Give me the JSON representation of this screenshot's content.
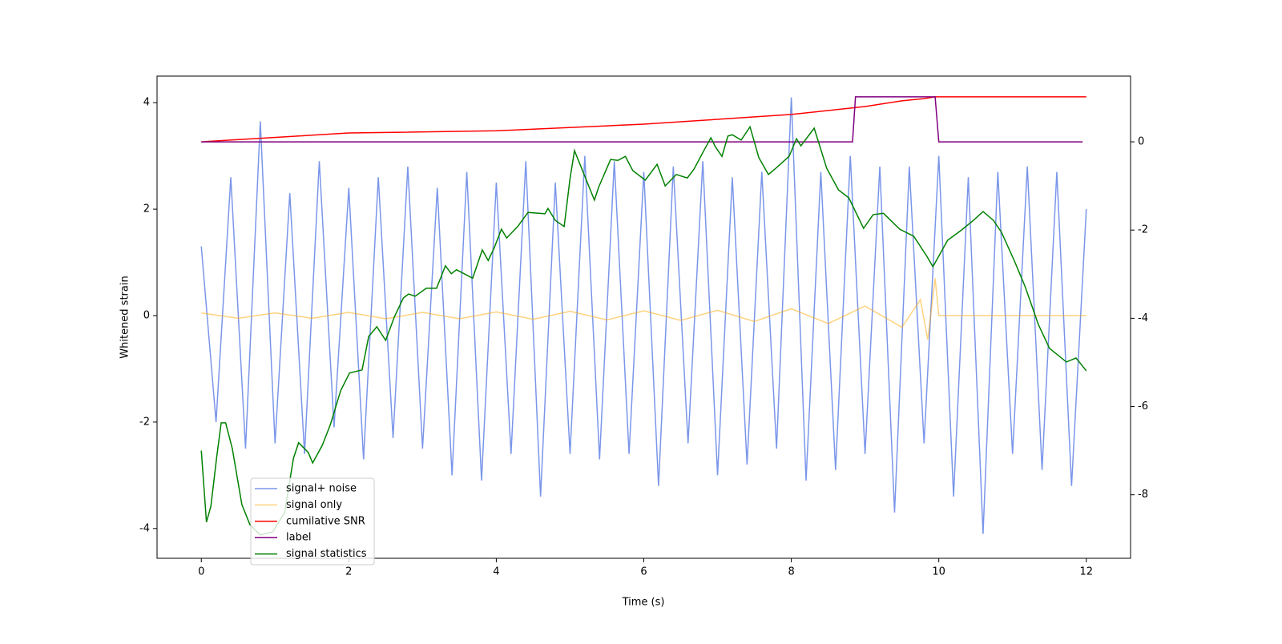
{
  "chart_data": {
    "type": "line",
    "xlabel": "Time (s)",
    "ylabel": "Whitened strain",
    "xlim": [
      -0.6,
      12.6
    ],
    "xticks": [
      0,
      2,
      4,
      6,
      8,
      10,
      12
    ],
    "ylim": [
      -4.56,
      4.5
    ],
    "yticks": [
      -4,
      -2,
      0,
      2,
      4
    ],
    "y2lim": [
      -9.44,
      1.49
    ],
    "y2ticks": [
      -8,
      -6,
      -4,
      -2,
      0
    ],
    "legend": "lower left",
    "series": [
      {
        "name": "signal+ noise",
        "color": "#4169e1",
        "opacity": 0.7,
        "x": [
          0,
          0.2,
          0.4,
          0.6,
          0.8,
          1,
          1.2,
          1.4,
          1.6,
          1.8,
          2,
          2.2,
          2.4,
          2.6,
          2.8,
          3,
          3.2,
          3.4,
          3.6,
          3.8,
          4,
          4.2,
          4.4,
          4.6,
          4.8,
          5,
          5.2,
          5.4,
          5.6,
          5.8,
          6,
          6.2,
          6.4,
          6.6,
          6.8,
          7,
          7.2,
          7.4,
          7.6,
          7.8,
          8,
          8.2,
          8.4,
          8.6,
          8.8,
          9,
          9.2,
          9.4,
          9.6,
          9.8,
          10,
          10.2,
          10.4,
          10.6,
          10.8,
          11,
          11.2,
          11.4,
          11.6,
          11.8,
          12
        ],
        "values": [
          1.3,
          -2.0,
          2.6,
          -2.5,
          3.65,
          -2.4,
          2.3,
          -2.6,
          2.9,
          -2.1,
          2.4,
          -2.7,
          2.6,
          -2.3,
          2.8,
          -2.5,
          2.4,
          -3.0,
          2.7,
          -3.1,
          2.5,
          -2.6,
          2.9,
          -3.4,
          2.5,
          -2.6,
          3.0,
          -2.7,
          2.9,
          -2.6,
          2.7,
          -3.2,
          2.8,
          -2.4,
          2.9,
          -3.0,
          2.6,
          -2.8,
          2.7,
          -2.5,
          4.1,
          -3.1,
          2.7,
          -2.9,
          3.0,
          -2.6,
          2.8,
          -3.7,
          2.8,
          -2.4,
          3.0,
          -3.4,
          2.6,
          -4.1,
          2.7,
          -2.6,
          2.8,
          -2.9,
          2.7,
          -3.2,
          2.0
        ]
      },
      {
        "name": "signal only",
        "color": "#ffa500",
        "opacity": 0.5,
        "x": [
          0,
          0.5,
          1,
          1.5,
          2,
          2.5,
          3,
          3.5,
          4,
          4.5,
          5,
          5.5,
          6,
          6.5,
          7,
          7.5,
          8,
          8.5,
          9,
          9.5,
          9.75,
          9.85,
          9.95,
          10,
          12
        ],
        "values": [
          0.05,
          -0.05,
          0.05,
          -0.05,
          0.06,
          -0.06,
          0.06,
          -0.06,
          0.07,
          -0.07,
          0.08,
          -0.08,
          0.09,
          -0.09,
          0.1,
          -0.11,
          0.13,
          -0.15,
          0.18,
          -0.22,
          0.3,
          -0.45,
          0.7,
          0,
          0
        ]
      },
      {
        "name": "cumilative SNR",
        "color": "#ff0000",
        "axis": "y2",
        "x": [
          0,
          2,
          4,
          6,
          8,
          9,
          9.5,
          9.8,
          9.95,
          12
        ],
        "values": [
          0,
          0.2,
          0.25,
          0.4,
          0.62,
          0.8,
          0.93,
          0.98,
          1.02,
          1.02
        ]
      },
      {
        "name": "label",
        "color": "#800080",
        "axis": "y2",
        "x": [
          0,
          8.83,
          8.87,
          9.95,
          10,
          11.95
        ],
        "values": [
          0,
          0,
          1.02,
          1.02,
          0,
          0
        ]
      },
      {
        "name": "signal statistics",
        "color": "#008000",
        "axis": "y2",
        "x": [
          0,
          0.07,
          0.13,
          0.21,
          0.27,
          0.33,
          0.42,
          0.55,
          0.66,
          0.8,
          0.97,
          1.13,
          1.25,
          1.32,
          1.45,
          1.51,
          1.64,
          1.75,
          1.89,
          2.01,
          2.18,
          2.27,
          2.38,
          2.5,
          2.62,
          2.74,
          2.81,
          2.9,
          3.05,
          3.19,
          3.31,
          3.39,
          3.46,
          3.68,
          3.81,
          3.89,
          3.97,
          4.07,
          4.14,
          4.29,
          4.43,
          4.66,
          4.7,
          4.8,
          4.92,
          5,
          5.06,
          5.21,
          5.33,
          5.39,
          5.55,
          5.65,
          5.75,
          5.85,
          6.02,
          6.18,
          6.29,
          6.44,
          6.59,
          6.68,
          6.83,
          6.91,
          6.97,
          7.06,
          7.14,
          7.2,
          7.32,
          7.44,
          7.56,
          7.69,
          7.79,
          7.97,
          8.07,
          8.13,
          8.31,
          8.48,
          8.64,
          8.78,
          8.98,
          9.11,
          9.25,
          9.47,
          9.66,
          9.84,
          9.92,
          10.12,
          10.3,
          10.47,
          10.6,
          10.74,
          10.85,
          11.03,
          11.17,
          11.35,
          11.5,
          11.73,
          11.86,
          12
        ],
        "values": [
          -7.0,
          -8.62,
          -8.26,
          -7.13,
          -6.37,
          -6.37,
          -6.95,
          -8.22,
          -8.68,
          -8.91,
          -8.84,
          -8.4,
          -7.17,
          -6.82,
          -7.04,
          -7.28,
          -6.88,
          -6.41,
          -5.64,
          -5.24,
          -5.17,
          -4.41,
          -4.19,
          -4.5,
          -3.96,
          -3.54,
          -3.45,
          -3.5,
          -3.32,
          -3.32,
          -2.81,
          -2.99,
          -2.9,
          -3.09,
          -2.45,
          -2.69,
          -2.41,
          -1.98,
          -2.18,
          -1.92,
          -1.6,
          -1.63,
          -1.51,
          -1.78,
          -1.92,
          -0.83,
          -0.2,
          -0.82,
          -1.32,
          -1.02,
          -0.4,
          -0.42,
          -0.33,
          -0.65,
          -0.87,
          -0.51,
          -1.0,
          -0.74,
          -0.82,
          -0.62,
          -0.15,
          0.09,
          -0.11,
          -0.33,
          0.13,
          0.16,
          0.04,
          0.34,
          -0.36,
          -0.74,
          -0.6,
          -0.33,
          0.07,
          -0.09,
          0.31,
          -0.6,
          -1.09,
          -1.27,
          -1.96,
          -1.65,
          -1.62,
          -1.98,
          -2.14,
          -2.6,
          -2.83,
          -2.23,
          -2.01,
          -1.78,
          -1.58,
          -1.78,
          -2.05,
          -2.72,
          -3.28,
          -4.14,
          -4.68,
          -4.99,
          -4.9,
          -5.19
        ]
      }
    ]
  }
}
